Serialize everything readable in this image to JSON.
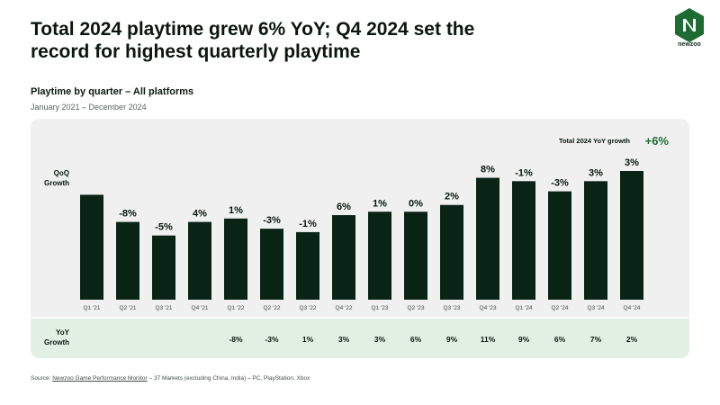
{
  "headline": "Total 2024 playtime grew 6% YoY; Q4 2024 set the record for highest quarterly playtime",
  "brand": {
    "name": "newzoo",
    "color": "#1f6b34"
  },
  "colors": {
    "bar": "#0a2317",
    "panel": "#eff0ef",
    "yoy_band": "#e2f0e4",
    "accent": "#1f6b34"
  },
  "footer": {
    "source_prefix": "Source: ",
    "source_link": "Newzoo Game Performance Monitor",
    "source_rest": " – 37 Markets (excluding China, India) – PC, PlayStation, Xbox"
  },
  "chart_data": {
    "type": "bar",
    "title": "Playtime by quarter – All platforms",
    "subtitle": "January 2021 – December 2024",
    "categories": [
      "Q1 '21",
      "Q2 '21",
      "Q3 '21",
      "Q4 '21",
      "Q1 '22",
      "Q2 '22",
      "Q3 '22",
      "Q4 '22",
      "Q1 '23",
      "Q2 '23",
      "Q3 '23",
      "Q4 '23",
      "Q1 '24",
      "Q2 '24",
      "Q3 '24",
      "Q4 '24"
    ],
    "relative_playtime": [
      100,
      92,
      88,
      92,
      93,
      90,
      89,
      94,
      95,
      95,
      97,
      105,
      104,
      101,
      104,
      107
    ],
    "qoq_label": "QoQ Growth",
    "qoq_growth": [
      "",
      "-8%",
      "-5%",
      "4%",
      "1%",
      "-3%",
      "-1%",
      "6%",
      "1%",
      "0%",
      "2%",
      "8%",
      "-1%",
      "-3%",
      "3%",
      "3%"
    ],
    "yoy_label": "YoY Growth",
    "yoy_growth": [
      "",
      "",
      "",
      "",
      "-8%",
      "-3%",
      "1%",
      "3%",
      "3%",
      "6%",
      "9%",
      "11%",
      "9%",
      "6%",
      "7%",
      "2%"
    ],
    "total_label": "Total 2024 YoY growth",
    "total_value": "+6%",
    "ylim": [
      0,
      110
    ],
    "grid": false,
    "legend": "none"
  }
}
